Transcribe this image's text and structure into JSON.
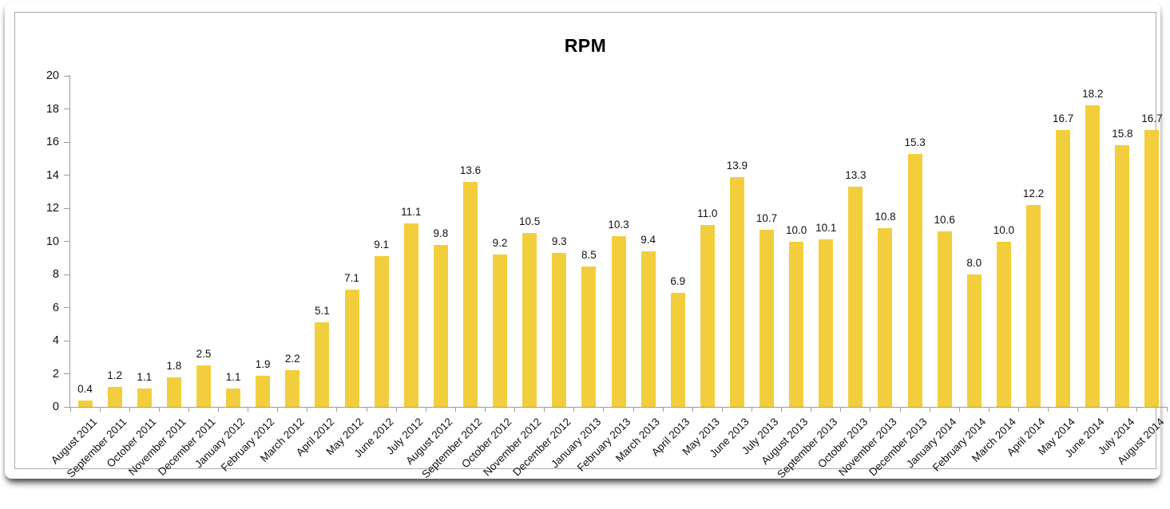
{
  "chart_data": {
    "type": "bar",
    "title": "RPM",
    "categories": [
      "August 2011",
      "September 2011",
      "October 2011",
      "November 2011",
      "December 2011",
      "January 2012",
      "February 2012",
      "March 2012",
      "April 2012",
      "May 2012",
      "June 2012",
      "July 2012",
      "August 2012",
      "September 2012",
      "October 2012",
      "November 2012",
      "December 2012",
      "January 2013",
      "February 2013",
      "March 2013",
      "April 2013",
      "May 2013",
      "June 2013",
      "July 2013",
      "August 2013",
      "September 2013",
      "October 2013",
      "November 2013",
      "December 2013",
      "January 2014",
      "February 2014",
      "March 2014",
      "April 2014",
      "May 2014",
      "June 2014",
      "July 2014",
      "August 2014"
    ],
    "values": [
      0.4,
      1.2,
      1.1,
      1.8,
      2.5,
      1.1,
      1.9,
      2.2,
      5.1,
      7.1,
      9.1,
      11.1,
      9.8,
      13.6,
      9.2,
      10.5,
      9.3,
      8.5,
      10.3,
      9.4,
      6.9,
      11.0,
      13.9,
      10.7,
      10.0,
      10.1,
      13.3,
      10.8,
      15.3,
      10.6,
      8.0,
      10.0,
      12.2,
      16.7,
      18.2,
      15.8,
      16.7
    ],
    "value_label_decimals": 1,
    "xlabel": "",
    "ylabel": "",
    "ylim": [
      0,
      20
    ],
    "ytick_step": 2,
    "grid": false,
    "legend_position": "none",
    "bar_color": "#F2CE3C",
    "axis_color": "#9b9b9b",
    "text_color": "#111111"
  }
}
